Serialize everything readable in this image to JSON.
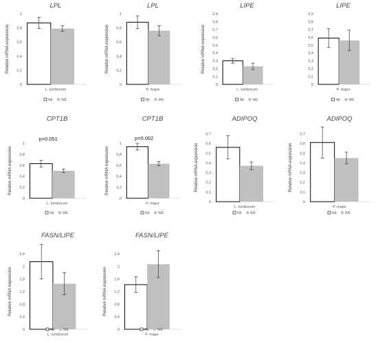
{
  "legend": [
    "NE",
    "WE"
  ],
  "colors": {
    "ne_fill": "#ffffff",
    "ne_stroke": "#000000",
    "we_fill": "#c0c0c0",
    "error": "#333333"
  },
  "chart_data": [
    {
      "type": "bar",
      "title": "LPL",
      "ylabel": "Relative mRNA expression",
      "categories": [
        "L. lumborum"
      ],
      "yticks": [
        "0",
        "0,2",
        "0,4",
        "0,6",
        "0,8",
        "1"
      ],
      "ylim": [
        0,
        1
      ],
      "series": [
        {
          "name": "NE",
          "values": [
            0.87
          ],
          "error": [
            0.08
          ]
        },
        {
          "name": "WE",
          "values": [
            0.79
          ],
          "error": [
            0.04
          ]
        }
      ],
      "annotation": "",
      "legend": [
        "NE",
        "WE"
      ]
    },
    {
      "type": "bar",
      "title": "LPL",
      "ylabel": "Relative mRNA expression",
      "categories": [
        "P. major"
      ],
      "yticks": [
        "0",
        "0,2",
        "0,4",
        "0,6",
        "0,8",
        "1"
      ],
      "ylim": [
        0,
        1
      ],
      "series": [
        {
          "name": "NE",
          "values": [
            0.88
          ],
          "error": [
            0.09
          ]
        },
        {
          "name": "WE",
          "values": [
            0.76
          ],
          "error": [
            0.07
          ]
        }
      ],
      "annotation": "",
      "legend": [
        "NE",
        "WE"
      ]
    },
    {
      "type": "bar",
      "title": "LIPE",
      "ylabel": "Relative mRNA expression",
      "categories": [
        "L. lumborum"
      ],
      "yticks": [
        "0",
        "0,1",
        "0,2",
        "0,3",
        "0,4",
        "0,5",
        "0,6",
        "0,7",
        "0,8",
        "0,9"
      ],
      "ylim": [
        0,
        0.9
      ],
      "series": [
        {
          "name": "NE",
          "values": [
            0.3
          ],
          "error": [
            0.03
          ]
        },
        {
          "name": "WE",
          "values": [
            0.23
          ],
          "error": [
            0.04
          ]
        }
      ],
      "annotation": "",
      "legend": [
        "NE",
        "WE"
      ]
    },
    {
      "type": "bar",
      "title": "LIPE",
      "ylabel": "",
      "categories": [
        "P. major"
      ],
      "yticks": [
        "0",
        "0,1",
        "0,2",
        "0,3",
        "0,4",
        "0,5",
        "0,6",
        "0,7",
        "0,8",
        "0,9"
      ],
      "ylim": [
        0,
        0.9
      ],
      "series": [
        {
          "name": "NE",
          "values": [
            0.59
          ],
          "error": [
            0.12
          ]
        },
        {
          "name": "WE",
          "values": [
            0.56
          ],
          "error": [
            0.13
          ]
        }
      ],
      "annotation": "",
      "legend": [
        "NE",
        "WE"
      ]
    },
    {
      "type": "bar",
      "title": "CPT1B",
      "ylabel": "Relative mRNA expression",
      "categories": [
        "L. lumborum"
      ],
      "yticks": [
        "0",
        "0,2",
        "0,4",
        "0,6",
        "0,8",
        "1"
      ],
      "ylim": [
        0,
        1
      ],
      "series": [
        {
          "name": "NE",
          "values": [
            0.63
          ],
          "error": [
            0.06
          ]
        },
        {
          "name": "WE",
          "values": [
            0.5
          ],
          "error": [
            0.03
          ]
        }
      ],
      "annotation": "p=0.051",
      "legend": [
        "NE",
        "WE"
      ]
    },
    {
      "type": "bar",
      "title": "CPT1B",
      "ylabel": "Relative mRNA expression",
      "categories": [
        "P. major"
      ],
      "yticks": [
        "0",
        "0,2",
        "0,4",
        "0,6",
        "0,8",
        "1"
      ],
      "ylim": [
        0,
        1
      ],
      "series": [
        {
          "name": "NE",
          "values": [
            0.94
          ],
          "error": [
            0.06
          ]
        },
        {
          "name": "WE",
          "values": [
            0.63
          ],
          "error": [
            0.04
          ]
        }
      ],
      "annotation": "p=0.002",
      "legend": [
        "NE",
        "WE"
      ]
    },
    {
      "type": "bar",
      "title": "ADIPOQ",
      "ylabel": "Relative mRNA expression",
      "categories": [
        "L. lumborum"
      ],
      "yticks": [
        "0",
        "0,1",
        "0,2",
        "0,3",
        "0,4",
        "0,5",
        "0,6",
        "0,7"
      ],
      "ylim": [
        0,
        0.7
      ],
      "series": [
        {
          "name": "NE",
          "values": [
            0.56
          ],
          "error": [
            0.12
          ]
        },
        {
          "name": "WE",
          "values": [
            0.37
          ],
          "error": [
            0.04
          ]
        }
      ],
      "annotation": "",
      "legend": [
        "NE",
        "WE"
      ]
    },
    {
      "type": "bar",
      "title": "ADIPOQ",
      "ylabel": "Relative mRNA expression",
      "categories": [
        "P. major"
      ],
      "yticks": [
        "0",
        "0,1",
        "0,2",
        "0,3",
        "0,4",
        "0,5",
        "0,6",
        "0,7"
      ],
      "ylim": [
        0,
        0.7
      ],
      "series": [
        {
          "name": "NE",
          "values": [
            0.61
          ],
          "error": [
            0.16
          ]
        },
        {
          "name": "WE",
          "values": [
            0.45
          ],
          "error": [
            0.06
          ]
        }
      ],
      "annotation": "",
      "legend": [
        "NE",
        "WE"
      ]
    },
    {
      "type": "bar",
      "title": "FASN/LIPE",
      "ylabel": "Relative mRNA expression",
      "categories": [
        "L. lumborum"
      ],
      "yticks": [
        "0",
        "0,4",
        "0,8",
        "1,2",
        "1,6",
        "2",
        "2,4"
      ],
      "ylim": [
        0,
        2.4
      ],
      "series": [
        {
          "name": "NE",
          "values": [
            2.15
          ],
          "error": [
            0.55
          ]
        },
        {
          "name": "WE",
          "values": [
            1.45
          ],
          "error": [
            0.35
          ]
        }
      ],
      "annotation": "",
      "legend": [
        "NE",
        "WE"
      ]
    },
    {
      "type": "bar",
      "title": "FASN/LIPE",
      "ylabel": "Relative mRNA expression",
      "categories": [
        "P. major"
      ],
      "yticks": [
        "0",
        "0,4",
        "0,8",
        "1,2",
        "1,6",
        "2",
        "2,4"
      ],
      "ylim": [
        0,
        2.4
      ],
      "series": [
        {
          "name": "NE",
          "values": [
            1.42
          ],
          "error": [
            0.25
          ]
        },
        {
          "name": "WE",
          "values": [
            2.07
          ],
          "error": [
            0.43
          ]
        }
      ],
      "annotation": "",
      "legend": [
        "NE",
        "WE"
      ]
    }
  ]
}
